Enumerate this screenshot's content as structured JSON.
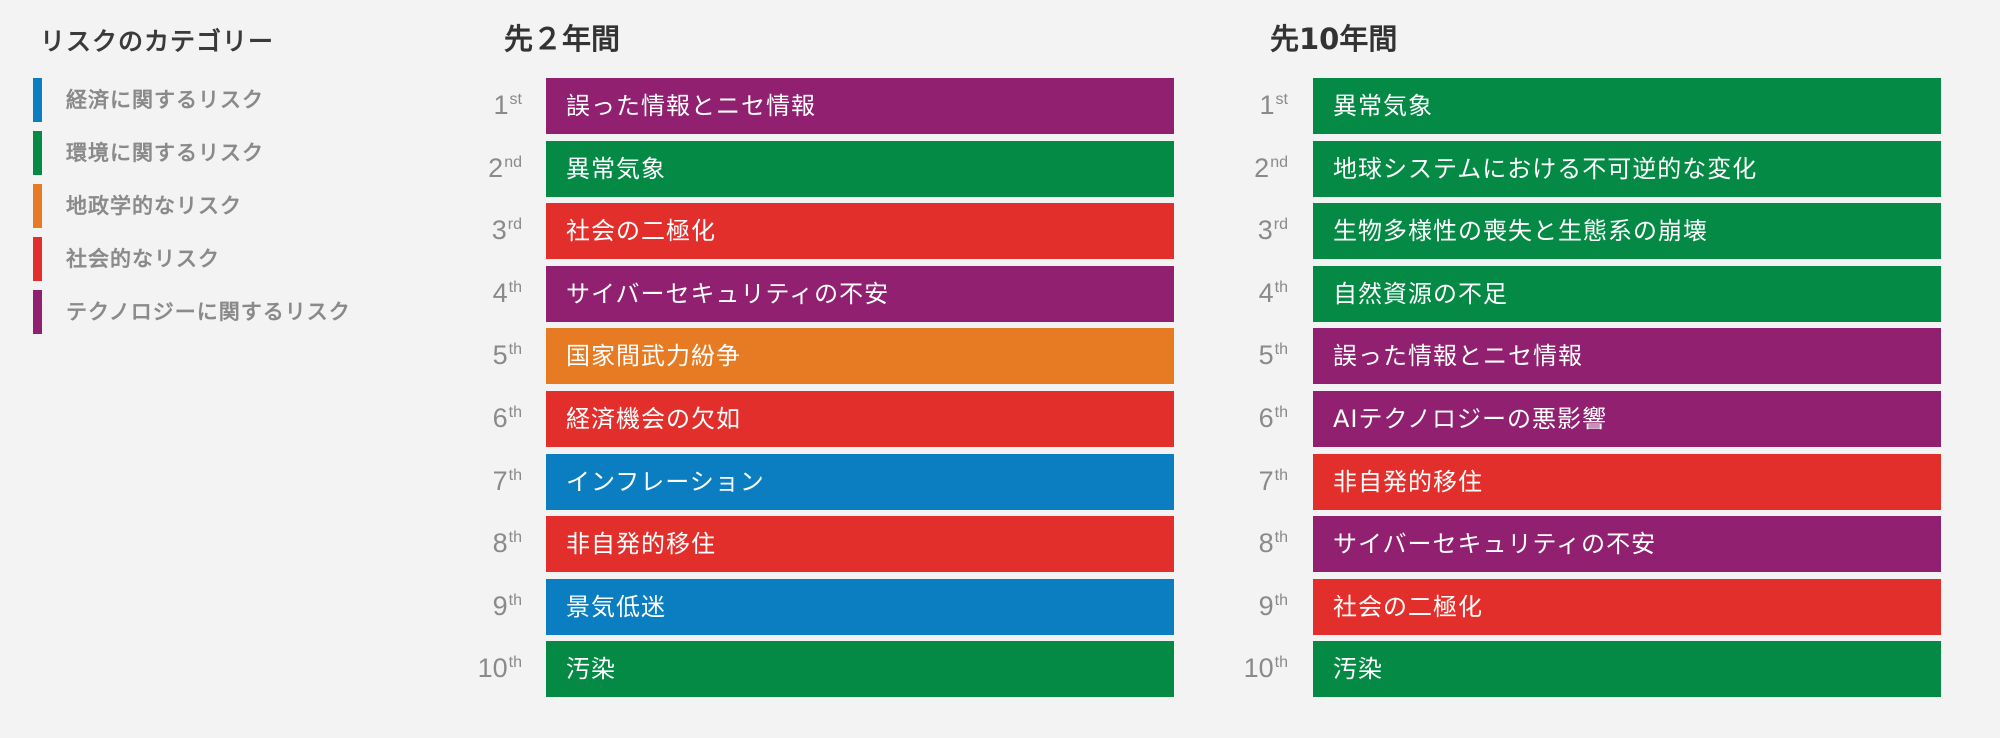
{
  "colors": {
    "economic": "#0b7ec2",
    "environmental": "#058a45",
    "geopolitical": "#e67b23",
    "societal": "#e32f2b",
    "technological": "#912070"
  },
  "legend": {
    "title": "リスクのカテゴリー",
    "items": [
      {
        "label": "経済に関するリスク",
        "category": "economic"
      },
      {
        "label": "環境に関するリスク",
        "category": "environmental"
      },
      {
        "label": "地政学的なリスク",
        "category": "geopolitical"
      },
      {
        "label": "社会的なリスク",
        "category": "societal"
      },
      {
        "label": "テクノロジーに関するリスク",
        "category": "technological"
      }
    ]
  },
  "columns": [
    {
      "title": "先２年間",
      "rows": [
        {
          "rank": "1",
          "suffix": "st",
          "label": "誤った情報とニセ情報",
          "category": "technological"
        },
        {
          "rank": "2",
          "suffix": "nd",
          "label": "異常気象",
          "category": "environmental"
        },
        {
          "rank": "3",
          "suffix": "rd",
          "label": "社会の二極化",
          "category": "societal"
        },
        {
          "rank": "4",
          "suffix": "th",
          "label": "サイバーセキュリティの不安",
          "category": "technological"
        },
        {
          "rank": "5",
          "suffix": "th",
          "label": "国家間武力紛争",
          "category": "geopolitical"
        },
        {
          "rank": "6",
          "suffix": "th",
          "label": "経済機会の欠如",
          "category": "societal"
        },
        {
          "rank": "7",
          "suffix": "th",
          "label": "インフレーション",
          "category": "economic"
        },
        {
          "rank": "8",
          "suffix": "th",
          "label": "非自発的移住",
          "category": "societal"
        },
        {
          "rank": "9",
          "suffix": "th",
          "label": "景気低迷",
          "category": "economic"
        },
        {
          "rank": "10",
          "suffix": "th",
          "label": "汚染",
          "category": "environmental"
        }
      ]
    },
    {
      "title": "先10年間",
      "rows": [
        {
          "rank": "1",
          "suffix": "st",
          "label": "異常気象",
          "category": "environmental"
        },
        {
          "rank": "2",
          "suffix": "nd",
          "label": "地球システムにおける不可逆的な変化",
          "category": "environmental"
        },
        {
          "rank": "3",
          "suffix": "rd",
          "label": "生物多様性の喪失と生態系の崩壊",
          "category": "environmental"
        },
        {
          "rank": "4",
          "suffix": "th",
          "label": "自然資源の不足",
          "category": "environmental"
        },
        {
          "rank": "5",
          "suffix": "th",
          "label": "誤った情報とニセ情報",
          "category": "technological"
        },
        {
          "rank": "6",
          "suffix": "th",
          "label": "AIテクノロジーの悪影響",
          "category": "technological"
        },
        {
          "rank": "7",
          "suffix": "th",
          "label": "非自発的移住",
          "category": "societal"
        },
        {
          "rank": "8",
          "suffix": "th",
          "label": "サイバーセキュリティの不安",
          "category": "technological"
        },
        {
          "rank": "9",
          "suffix": "th",
          "label": "社会の二極化",
          "category": "societal"
        },
        {
          "rank": "10",
          "suffix": "th",
          "label": "汚染",
          "category": "environmental"
        }
      ]
    }
  ]
}
